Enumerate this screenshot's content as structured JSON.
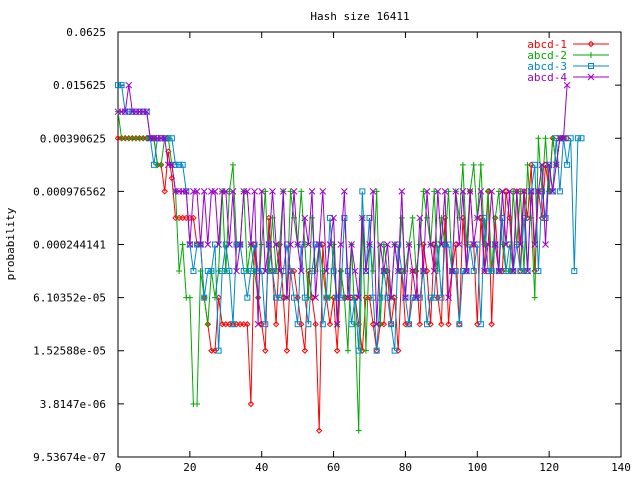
{
  "chart_data": {
    "type": "line",
    "title": "Hash size 16411",
    "ylabel": "probability",
    "xlabel": "",
    "xlim": [
      0,
      140
    ],
    "yscale": "log2",
    "ylim": [
      9.53674e-07,
      0.0625
    ],
    "grid": false,
    "legend_position": "top-right",
    "x_ticks": [
      "0",
      "20",
      "40",
      "60",
      "80",
      "100",
      "120",
      "140"
    ],
    "y_ticks": [
      "0.0625",
      "0.015625",
      "0.00390625",
      "0.000976562",
      "0.000244141",
      "6.10352e-05",
      "1.52588e-05",
      "3.8147e-06",
      "9.53674e-07"
    ],
    "series": [
      {
        "name": "abcd-1",
        "color": "#ff0000",
        "marker": "diamond",
        "y": [
          0.003906,
          0.003906,
          0.003906,
          0.003906,
          0.003906,
          0.003906,
          0.003906,
          0.003906,
          0.003906,
          0.003906,
          0.003906,
          0.001953,
          0.001953,
          0.0009766,
          0.002762,
          0.001381,
          0.0004883,
          0.0004883,
          0.0004883,
          0.0004883,
          0.0004883,
          0.0004883,
          0.0002441,
          0.0002441,
          6.1e-05,
          3.05e-05,
          1.53e-05,
          1.53e-05,
          6.1e-05,
          3.05e-05,
          3.05e-05,
          3.05e-05,
          3.05e-05,
          3.05e-05,
          3.05e-05,
          3.05e-05,
          3.05e-05,
          3.8e-06,
          0.0002441,
          6.1e-05,
          3.05e-05,
          1.53e-05,
          0.0004883,
          0.0001221,
          3.05e-05,
          0.0002441,
          6.1e-05,
          1.53e-05,
          0.0001221,
          0.0001221,
          6.1e-05,
          3.05e-05,
          1.53e-05,
          0.0001221,
          6.1e-05,
          3.05e-05,
          1.9e-06,
          0.0002441,
          6.1e-05,
          3.05e-05,
          6.1e-05,
          1.53e-05,
          0.0001221,
          6.1e-05,
          6.1e-05,
          6.1e-05,
          6.1e-05,
          3.05e-05,
          1.53e-05,
          6.1e-05,
          6.1e-05,
          3.05e-05,
          1.53e-05,
          3.05e-05,
          3.05e-05,
          0.0001221,
          3.05e-05,
          6.1e-05,
          1.53e-05,
          0.0001221,
          3.05e-05,
          3.05e-05,
          0.0001221,
          0.0001221,
          3.05e-05,
          0.0002441,
          0.0001221,
          3.05e-05,
          0.0002441,
          6.1e-05,
          3.05e-05,
          0.0004883,
          3.05e-05,
          0.0001221,
          0.0002441,
          3.05e-05,
          0.0004883,
          0.0001221,
          0.0009766,
          0.0002441,
          3.05e-05,
          0.0004883,
          0.0001221,
          0.0009766,
          3.05e-05,
          0.0004883,
          0.0001221,
          0.0001221,
          0.0009766,
          0.0004883,
          0.0001221,
          0.0009766,
          0.0001221,
          0.0009766,
          0.0004883,
          0.0019531,
          0.0001221,
          0.0009766,
          0.0004883,
          0.0019531,
          0.0009766,
          0.0039063,
          0.0019531,
          0.0039063,
          0.0039063,
          0.0039063
        ]
      },
      {
        "name": "abcd-2",
        "color": "#00aa00",
        "marker": "plus",
        "y": [
          0.007813,
          0.003906,
          0.003906,
          0.003906,
          0.003906,
          0.003906,
          0.003906,
          0.003906,
          0.003906,
          0.003906,
          0.003906,
          0.001953,
          0.001953,
          0.003906,
          0.003906,
          0.001953,
          0.0009766,
          0.0001221,
          0.0002441,
          6.1e-05,
          6.1e-05,
          3.8e-06,
          3.8e-06,
          0.0001221,
          6.1e-05,
          3.05e-05,
          0.0001221,
          6.1e-05,
          0.0001221,
          0.0009766,
          0.0001221,
          0.0009766,
          0.0019531,
          0.0002441,
          0.0002441,
          0.0009766,
          0.0001221,
          0.0002441,
          0.0001221,
          6.1e-05,
          0.0002441,
          0.0009766,
          0.0001221,
          0.0004883,
          0.0001221,
          0.0002441,
          0.0009766,
          6.1e-05,
          0.0009766,
          0.0004883,
          0.0002441,
          0.0009766,
          0.0002441,
          6.1e-05,
          0.0004883,
          0.0001221,
          0.0002441,
          0.0001221,
          6.1e-05,
          6.1e-05,
          0.0002441,
          3.05e-05,
          0.0001221,
          6.1e-05,
          1.53e-05,
          0.0002441,
          3.05e-05,
          1.9e-06,
          0.0004883,
          1.53e-05,
          0.0002441,
          0.0001221,
          0.0009766,
          3.05e-05,
          0.0002441,
          0.0001221,
          6.1e-05,
          0.0002441,
          0.0001221,
          0.0004883,
          0.0001221,
          0.0002441,
          0.0004883,
          0.0001221,
          0.0002441,
          0.0009766,
          0.0004883,
          0.0002441,
          0.0009766,
          0.0001221,
          0.0004883,
          0.0002441,
          0.0009766,
          0.0001221,
          0.0009766,
          0.0004883,
          0.0019531,
          0.0002441,
          0.0009766,
          0.0019531,
          0.0004883,
          0.0019531,
          0.0002441,
          0.0009766,
          0.0001221,
          0.0004883,
          0.0009766,
          0.0002441,
          0.0001221,
          0.0001221,
          0.0009766,
          0.0002441,
          0.0009766,
          0.0001221,
          0.0019531,
          0.0004883,
          6.1e-05,
          0.0039063,
          0.0009766,
          0.0039063,
          0.0009766,
          0.0039063,
          0.0019531,
          0.0039063,
          0.0039063
        ]
      },
      {
        "name": "abcd-3",
        "color": "#0088cc",
        "marker": "square",
        "y": [
          0.015625,
          0.015625,
          0.007813,
          0.007813,
          0.007813,
          0.007813,
          0.007813,
          0.007813,
          0.007813,
          0.003906,
          0.001953,
          0.003906,
          0.003906,
          0.003906,
          0.003906,
          0.003906,
          0.001953,
          0.001953,
          0.001953,
          0.0009766,
          0.0002441,
          0.0001221,
          0.0002441,
          0.0002441,
          6.1e-05,
          0.0001221,
          0.0001221,
          0.0002441,
          1.53e-05,
          0.0001221,
          0.0002441,
          0.0001221,
          3.05e-05,
          0.0002441,
          0.0002441,
          0.0001221,
          6.1e-05,
          0.0001221,
          0.0002441,
          0.0001221,
          0.0001221,
          3.05e-05,
          0.0002441,
          0.0001221,
          6.1e-05,
          6.1e-05,
          0.0001221,
          0.0002441,
          0.0001221,
          6.1e-05,
          3.05e-05,
          0.0002441,
          6.1e-05,
          3.05e-05,
          0.0001221,
          0.0002441,
          0.0002441,
          3.05e-05,
          6.1e-05,
          0.0004883,
          0.0001221,
          6.1e-05,
          6.1e-05,
          0.0004883,
          0.0001221,
          3.05e-05,
          6.1e-05,
          1.53e-05,
          0.0009766,
          0.0001221,
          0.0004883,
          6.1e-05,
          1.53e-05,
          6.1e-05,
          0.0001221,
          6.1e-05,
          3.05e-05,
          1.53e-05,
          0.0002441,
          0.0001221,
          6.1e-05,
          3.05e-05,
          6.1e-05,
          6.1e-05,
          6.1e-05,
          0.0001221,
          3.05e-05,
          6.1e-05,
          6.1e-05,
          0.0002441,
          6.1e-05,
          0.0002441,
          0.0002441,
          0.0001221,
          0.0001221,
          3.05e-05,
          0.0001221,
          0.0001221,
          0.0002441,
          0.0001221,
          0.0002441,
          3.05e-05,
          0.0004883,
          0.0001221,
          0.0001221,
          0.0002441,
          0.0001221,
          0.0004883,
          0.0001221,
          0.0002441,
          0.0001221,
          0.0002441,
          0.0001221,
          0.0004883,
          0.0001221,
          0.0009766,
          0.0019531,
          0.0001221,
          0.0009766,
          0.0004883,
          0.0019531,
          0.0009766,
          0.0039063,
          0.0009766,
          0.0039063,
          0.0019531,
          0.0039063,
          0.0001221,
          0.0039063,
          0.0039063
        ]
      },
      {
        "name": "abcd-4",
        "color": "#9900cc",
        "marker": "cross",
        "y": [
          0.007813,
          0.007813,
          0.007813,
          0.015625,
          0.007813,
          0.007813,
          0.007813,
          0.007813,
          0.007813,
          0.003906,
          0.003906,
          0.003906,
          0.003906,
          0.003906,
          0.001953,
          0.001953,
          0.0009766,
          0.0009766,
          0.0009766,
          0.0009766,
          0.0002441,
          0.0009766,
          0.0009766,
          0.0002441,
          0.0009766,
          0.0002441,
          0.0009766,
          0.0009766,
          0.0002441,
          0.0009766,
          0.0009766,
          0.0002441,
          0.0009766,
          0.0001221,
          0.0002441,
          0.0009766,
          0.0009766,
          0.0002441,
          0.0009766,
          3.05e-05,
          0.0009766,
          0.0001221,
          0.0002441,
          0.0009766,
          0.0002441,
          0.0001221,
          0.0009766,
          6.1e-05,
          0.0002441,
          0.0009766,
          0.0002441,
          0.0001221,
          0.0004883,
          0.0002441,
          0.0009766,
          6.1e-05,
          0.0002441,
          0.0009766,
          0.0001221,
          0.0002441,
          0.0004883,
          3.05e-05,
          0.0002441,
          0.0009766,
          6.1e-05,
          0.0002441,
          0.0001221,
          6.1e-05,
          0.0004883,
          0.0001221,
          0.0002441,
          0.0009766,
          3.05e-05,
          0.0002441,
          0.0001221,
          0.0002441,
          6.1e-05,
          0.0002441,
          0.0001221,
          0.0009766,
          6.1e-05,
          0.0002441,
          0.0001221,
          6.1e-05,
          0.0004883,
          0.0001221,
          0.0009766,
          0.0002441,
          0.0001221,
          0.0009766,
          0.0002441,
          0.0009766,
          6.1e-05,
          0.0001221,
          0.0009766,
          0.0002441,
          0.0009766,
          0.0001221,
          0.0009766,
          0.0002441,
          0.0004883,
          0.0009766,
          0.0001221,
          0.0002441,
          0.0009766,
          0.0002441,
          0.0001221,
          0.0009766,
          0.0002441,
          0.0009766,
          0.0001221,
          0.0009766,
          0.0002441,
          0.0009766,
          0.0001221,
          0.0009766,
          0.0002441,
          0.0009766,
          0.0019531,
          0.0002441,
          0.0019531,
          0.0009766,
          0.0019531,
          0.0039063,
          0.0039063,
          0.015625
        ]
      }
    ]
  }
}
